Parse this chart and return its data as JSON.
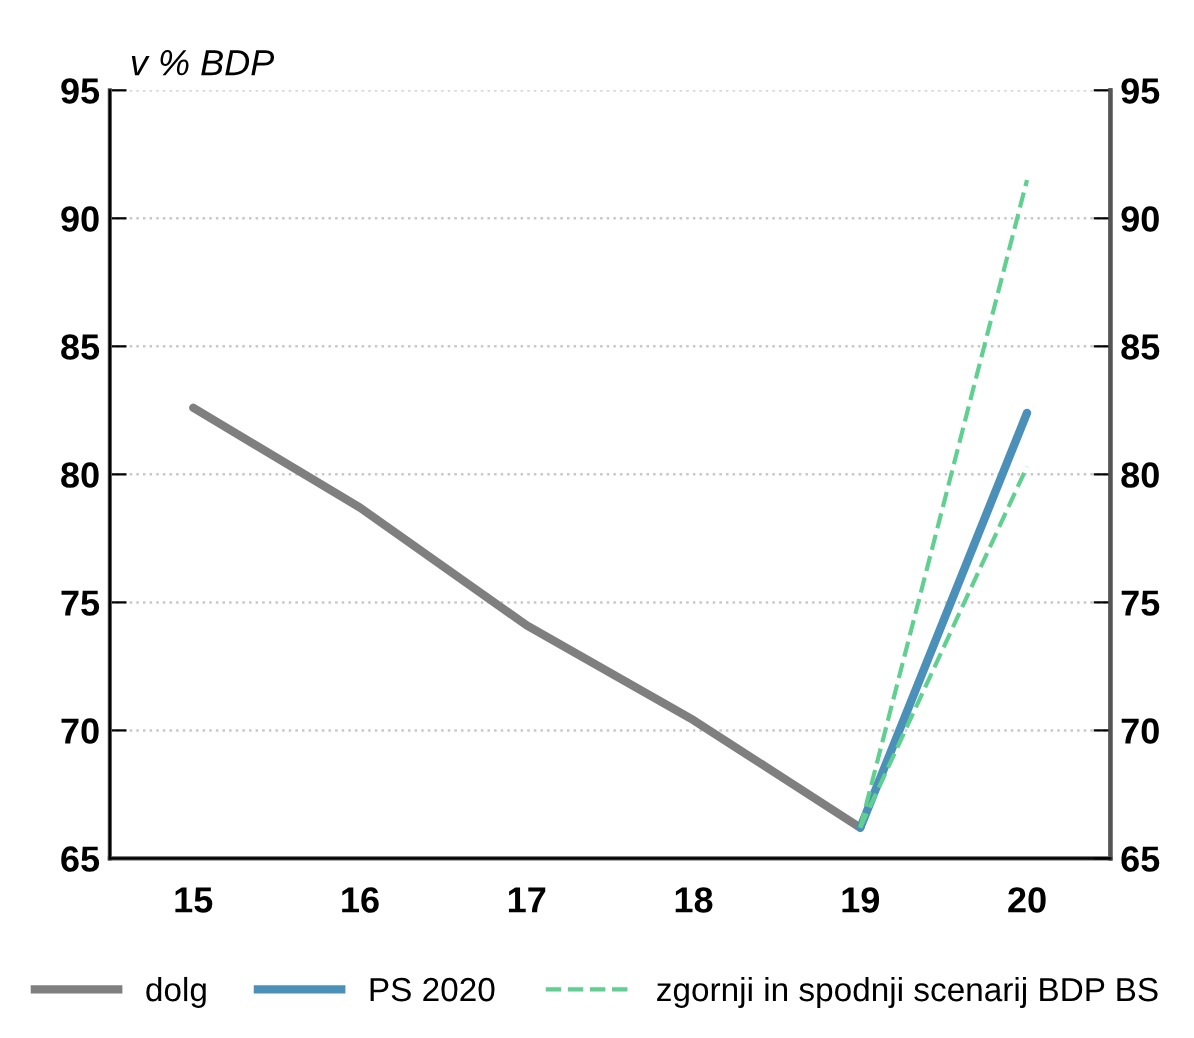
{
  "chart_data": {
    "type": "line",
    "ylabel": "v % BDP",
    "categories": [
      "15",
      "16",
      "17",
      "18",
      "19",
      "20"
    ],
    "series": [
      {
        "name": "dolg",
        "color": "#7f7f7f",
        "values": [
          82.6,
          78.7,
          74.1,
          70.4,
          66.2,
          null
        ]
      },
      {
        "name": "PS 2020",
        "color": "#4a90b8",
        "values": [
          null,
          null,
          null,
          null,
          66.2,
          82.4
        ]
      },
      {
        "name": "zgornji in spodnji scenarij BDP BS",
        "color": "#5fd08f",
        "line_style": "dashed",
        "values": [
          null,
          null,
          null,
          null,
          66.2,
          91.5
        ]
      },
      {
        "color": "#5fd08f",
        "line_style": "dashed",
        "values": [
          null,
          null,
          null,
          null,
          66.2,
          80.3
        ]
      }
    ],
    "ylim": [
      65,
      95
    ],
    "yticks": [
      65,
      70,
      75,
      80,
      85,
      90,
      95
    ],
    "y2lim": [
      65,
      95
    ],
    "y2ticks": [
      65,
      70,
      75,
      80,
      85,
      90,
      95
    ],
    "grid": true,
    "legend": "bottom"
  }
}
